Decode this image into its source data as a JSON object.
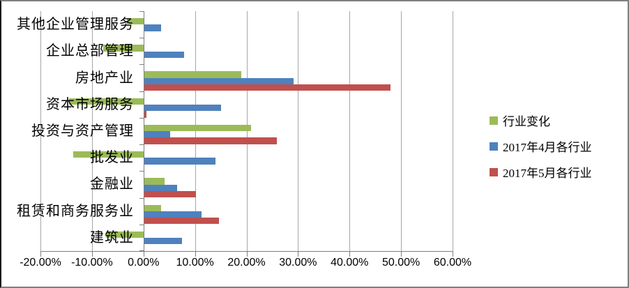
{
  "chart_data": {
    "type": "bar",
    "orientation": "horizontal",
    "title": "",
    "categories": [
      "其他企业管理服务",
      "企业总部管理",
      "房地产业",
      "资本市场服务",
      "投资与资产管理",
      "批发业",
      "金融业",
      "租赁和商务服务业",
      "建筑业"
    ],
    "series": [
      {
        "name": "行业变化",
        "color": "#9bbb59",
        "values": [
          -3.2,
          -7.8,
          18.8,
          -14.5,
          20.7,
          -13.6,
          3.9,
          3.3,
          -7.3
        ]
      },
      {
        "name": "2017年4月各行业",
        "color": "#4f81bd",
        "values": [
          3.3,
          7.7,
          29.0,
          14.9,
          5.1,
          13.9,
          6.4,
          11.2,
          7.3
        ]
      },
      {
        "name": "2017年5月各行业",
        "color": "#c0504d",
        "values": [
          0,
          0,
          47.8,
          0.5,
          25.8,
          0,
          10.0,
          14.5,
          0
        ]
      }
    ],
    "x_axis": {
      "min": -20,
      "max": 60,
      "step": 10,
      "unit": "percent",
      "tick_labels": [
        "-20.00%",
        "-10.00%",
        "0.00%",
        "10.00%",
        "20.00%",
        "30.00%",
        "40.00%",
        "50.00%",
        "60.00%"
      ]
    },
    "legend_position": "right",
    "gridlines": true
  },
  "colors": {
    "gridline": "#a6a6a6",
    "axis": "#7f7f7f",
    "background": "#ffffff",
    "text": "#000000"
  }
}
